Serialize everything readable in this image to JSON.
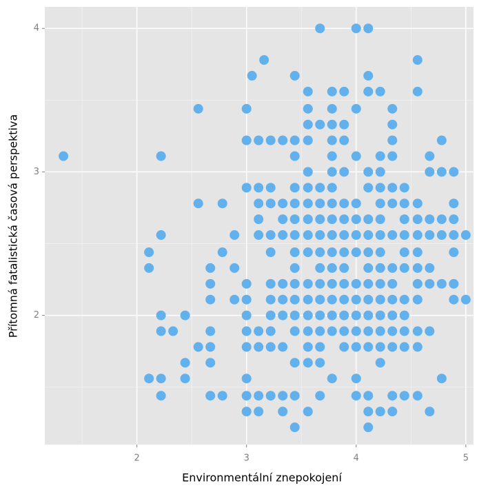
{
  "chart_data": {
    "type": "scatter",
    "x_label": "Environmentální znepokojení",
    "y_label": "Přítomná fatalistická časová perspektiva",
    "color": "#62b0ec",
    "grid": true,
    "xlim": [
      1.16,
      5.07
    ],
    "xticks": [
      2,
      3,
      4,
      5
    ],
    "ylim": [
      1.1,
      4.15
    ],
    "yticks": [
      2,
      3,
      4
    ],
    "x": [
      3.67,
      4.0,
      4.11,
      3.16,
      4.56,
      3.05,
      3.44,
      4.11,
      3.56,
      3.78,
      3.89,
      4.11,
      4.22,
      4.56,
      2.56,
      3.0,
      3.56,
      3.78,
      4.0,
      4.33,
      3.56,
      3.67,
      3.78,
      3.89,
      4.33,
      3.0,
      3.11,
      3.22,
      3.33,
      3.44,
      3.56,
      3.78,
      3.89,
      4.33,
      4.78,
      1.33,
      2.22,
      3.44,
      3.78,
      4.0,
      4.22,
      4.33,
      4.67,
      3.56,
      3.78,
      3.89,
      4.11,
      4.22,
      4.67,
      4.78,
      4.89,
      3.0,
      3.11,
      3.22,
      3.44,
      3.56,
      3.67,
      3.78,
      4.11,
      4.22,
      4.33,
      4.44,
      2.56,
      2.78,
      3.11,
      3.22,
      3.33,
      3.44,
      3.56,
      3.67,
      3.78,
      3.89,
      4.0,
      4.22,
      4.33,
      4.44,
      4.56,
      4.89,
      3.11,
      3.33,
      3.44,
      3.56,
      3.67,
      3.78,
      3.89,
      4.0,
      4.11,
      4.22,
      4.44,
      4.56,
      4.67,
      4.78,
      4.89,
      2.22,
      2.89,
      3.11,
      3.22,
      3.33,
      3.44,
      3.56,
      3.67,
      3.78,
      3.89,
      4.0,
      4.11,
      4.22,
      4.33,
      4.44,
      4.56,
      4.67,
      4.78,
      4.89,
      5.0,
      2.11,
      2.78,
      3.22,
      3.44,
      3.56,
      3.67,
      3.78,
      3.89,
      4.0,
      4.11,
      4.22,
      4.44,
      4.56,
      4.89,
      2.11,
      2.67,
      2.89,
      3.44,
      3.67,
      3.78,
      3.89,
      4.11,
      4.22,
      4.33,
      4.44,
      4.56,
      4.67,
      2.67,
      3.0,
      3.22,
      3.33,
      3.44,
      3.56,
      3.67,
      3.78,
      3.89,
      4.0,
      4.11,
      4.22,
      4.33,
      4.56,
      4.67,
      4.78,
      4.89,
      2.67,
      2.89,
      3.0,
      3.22,
      3.33,
      3.44,
      3.56,
      3.67,
      3.78,
      3.89,
      4.0,
      4.11,
      4.22,
      4.33,
      4.44,
      4.56,
      4.89,
      5.0,
      2.22,
      2.44,
      3.0,
      3.22,
      3.33,
      3.44,
      3.56,
      3.67,
      3.78,
      3.89,
      4.0,
      4.11,
      4.22,
      4.33,
      4.44,
      2.22,
      2.33,
      2.67,
      3.0,
      3.11,
      3.22,
      3.44,
      3.56,
      3.67,
      3.78,
      3.89,
      4.0,
      4.11,
      4.22,
      4.33,
      4.44,
      4.56,
      4.67,
      2.56,
      2.67,
      3.0,
      3.11,
      3.22,
      3.33,
      3.56,
      3.67,
      3.89,
      4.0,
      4.11,
      4.22,
      4.33,
      4.44,
      4.56,
      2.44,
      2.67,
      3.44,
      3.56,
      3.67,
      4.22,
      2.11,
      2.22,
      2.44,
      3.0,
      3.78,
      4.0,
      4.78,
      2.22,
      2.67,
      2.78,
      3.0,
      3.11,
      3.22,
      3.33,
      3.44,
      3.67,
      4.0,
      4.11,
      4.33,
      4.44,
      4.56,
      3.0,
      3.11,
      3.33,
      3.56,
      4.11,
      4.22,
      4.33,
      4.67,
      3.44,
      4.11
    ],
    "values": [
      4.0,
      4.0,
      4.0,
      3.78,
      3.78,
      3.67,
      3.67,
      3.67,
      3.56,
      3.56,
      3.56,
      3.56,
      3.56,
      3.56,
      3.44,
      3.44,
      3.44,
      3.44,
      3.44,
      3.44,
      3.33,
      3.33,
      3.33,
      3.33,
      3.33,
      3.22,
      3.22,
      3.22,
      3.22,
      3.22,
      3.22,
      3.22,
      3.22,
      3.22,
      3.22,
      3.11,
      3.11,
      3.11,
      3.11,
      3.11,
      3.11,
      3.11,
      3.11,
      3.0,
      3.0,
      3.0,
      3.0,
      3.0,
      3.0,
      3.0,
      3.0,
      2.89,
      2.89,
      2.89,
      2.89,
      2.89,
      2.89,
      2.89,
      2.89,
      2.89,
      2.89,
      2.89,
      2.78,
      2.78,
      2.78,
      2.78,
      2.78,
      2.78,
      2.78,
      2.78,
      2.78,
      2.78,
      2.78,
      2.78,
      2.78,
      2.78,
      2.78,
      2.78,
      2.67,
      2.67,
      2.67,
      2.67,
      2.67,
      2.67,
      2.67,
      2.67,
      2.67,
      2.67,
      2.67,
      2.67,
      2.67,
      2.67,
      2.67,
      2.56,
      2.56,
      2.56,
      2.56,
      2.56,
      2.56,
      2.56,
      2.56,
      2.56,
      2.56,
      2.56,
      2.56,
      2.56,
      2.56,
      2.56,
      2.56,
      2.56,
      2.56,
      2.56,
      2.56,
      2.44,
      2.44,
      2.44,
      2.44,
      2.44,
      2.44,
      2.44,
      2.44,
      2.44,
      2.44,
      2.44,
      2.44,
      2.44,
      2.44,
      2.33,
      2.33,
      2.33,
      2.33,
      2.33,
      2.33,
      2.33,
      2.33,
      2.33,
      2.33,
      2.33,
      2.33,
      2.33,
      2.22,
      2.22,
      2.22,
      2.22,
      2.22,
      2.22,
      2.22,
      2.22,
      2.22,
      2.22,
      2.22,
      2.22,
      2.22,
      2.22,
      2.22,
      2.22,
      2.22,
      2.11,
      2.11,
      2.11,
      2.11,
      2.11,
      2.11,
      2.11,
      2.11,
      2.11,
      2.11,
      2.11,
      2.11,
      2.11,
      2.11,
      2.11,
      2.11,
      2.11,
      2.11,
      2.0,
      2.0,
      2.0,
      2.0,
      2.0,
      2.0,
      2.0,
      2.0,
      2.0,
      2.0,
      2.0,
      2.0,
      2.0,
      2.0,
      2.0,
      1.89,
      1.89,
      1.89,
      1.89,
      1.89,
      1.89,
      1.89,
      1.89,
      1.89,
      1.89,
      1.89,
      1.89,
      1.89,
      1.89,
      1.89,
      1.89,
      1.89,
      1.89,
      1.78,
      1.78,
      1.78,
      1.78,
      1.78,
      1.78,
      1.78,
      1.78,
      1.78,
      1.78,
      1.78,
      1.78,
      1.78,
      1.78,
      1.78,
      1.67,
      1.67,
      1.67,
      1.67,
      1.67,
      1.67,
      1.56,
      1.56,
      1.56,
      1.56,
      1.56,
      1.56,
      1.56,
      1.44,
      1.44,
      1.44,
      1.44,
      1.44,
      1.44,
      1.44,
      1.44,
      1.44,
      1.44,
      1.44,
      1.44,
      1.44,
      1.44,
      1.33,
      1.33,
      1.33,
      1.33,
      1.33,
      1.33,
      1.33,
      1.33,
      1.22,
      1.22
    ]
  }
}
